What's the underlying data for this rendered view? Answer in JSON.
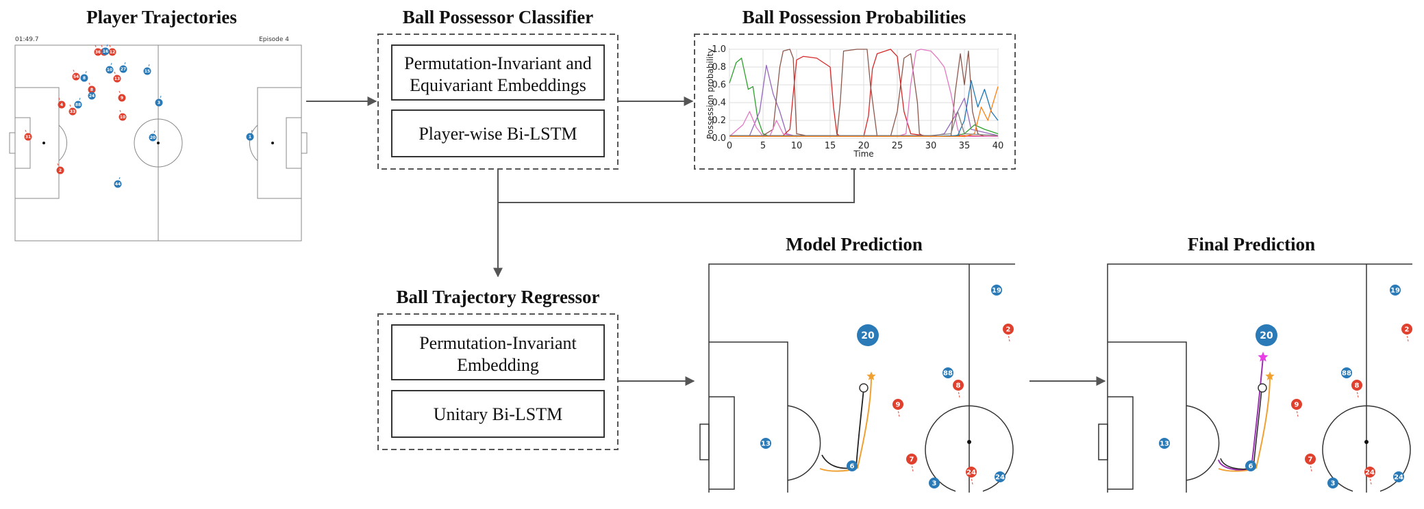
{
  "titles": {
    "trajectories": "Player Trajectories",
    "classifier": "Ball Possessor Classifier",
    "probabilities": "Ball Possession Probabilities",
    "regressor": "Ball Trajectory Regressor",
    "model_prediction": "Model Prediction",
    "final_prediction": "Final Prediction"
  },
  "classifier_boxes": [
    [
      "Permutation-Invariant and",
      "Equivariant Embeddings"
    ],
    [
      "Player-wise Bi-LSTM"
    ]
  ],
  "regressor_boxes": [
    [
      "Permutation-Invariant",
      "Embedding"
    ],
    [
      "Unitary Bi-LSTM"
    ]
  ],
  "trajectory_panel": {
    "clock": "01:49.7",
    "episode": "Episode 4",
    "red_players": [
      "36",
      "14",
      "12",
      "54",
      "9",
      "13",
      "8",
      "4",
      "33",
      "10",
      "31",
      "2"
    ],
    "blue_players": [
      "16",
      "10",
      "27",
      "15",
      "8",
      "88",
      "24",
      "3",
      "20",
      "1",
      "44"
    ]
  },
  "chart_data": {
    "type": "line",
    "title": "",
    "xlabel": "Time",
    "ylabel": "Possession probability",
    "xlim": [
      0,
      40
    ],
    "ylim": [
      0,
      1
    ],
    "xticks": [
      "0",
      "5",
      "10",
      "15",
      "20",
      "25",
      "30",
      "35",
      "40"
    ],
    "yticks": [
      "0.0",
      "0.2",
      "0.4",
      "0.6",
      "0.8",
      "1.0"
    ],
    "grid": true,
    "series": [
      {
        "color": "#2ca02c",
        "x": [
          0,
          1,
          1.8,
          2.8,
          3.5,
          4.2,
          5,
          6,
          7,
          8,
          9,
          10,
          15,
          20,
          25,
          30,
          33,
          35,
          36.5,
          38,
          40
        ],
        "y": [
          0.62,
          0.85,
          0.9,
          0.55,
          0.58,
          0.22,
          0.05,
          0.02,
          0.02,
          0.02,
          0.02,
          0.02,
          0.02,
          0.02,
          0.02,
          0.02,
          0.02,
          0.05,
          0.15,
          0.1,
          0.05
        ]
      },
      {
        "color": "#9467bd",
        "x": [
          0,
          3,
          4.5,
          5.5,
          6.5,
          7.5,
          8.5,
          10,
          15,
          20,
          25,
          30,
          32,
          34,
          35,
          36,
          40
        ],
        "y": [
          0.03,
          0.03,
          0.3,
          0.82,
          0.5,
          0.3,
          0.05,
          0.02,
          0.02,
          0.02,
          0.02,
          0.02,
          0.05,
          0.3,
          0.45,
          0.1,
          0.03
        ]
      },
      {
        "color": "#8c564b",
        "x": [
          0,
          5,
          6.5,
          7.5,
          8,
          9,
          9.5,
          10,
          12,
          16,
          16.5,
          17,
          19,
          20.5,
          21,
          22,
          24,
          25,
          26,
          27,
          28,
          28.3,
          29,
          33,
          33.6,
          34.4,
          35,
          35.6,
          36.2,
          37,
          38,
          40
        ],
        "y": [
          0.03,
          0.03,
          0.1,
          0.8,
          0.98,
          1.0,
          0.9,
          0.05,
          0.02,
          0.02,
          0.4,
          0.98,
          1.0,
          1.0,
          0.6,
          0.02,
          0.02,
          0.3,
          0.9,
          0.95,
          0.4,
          0.05,
          0.02,
          0.02,
          0.5,
          0.95,
          0.6,
          0.98,
          0.3,
          0.05,
          0.02,
          0.02
        ]
      },
      {
        "color": "#d62728",
        "x": [
          0,
          8,
          9,
          9.5,
          10,
          11,
          13,
          15,
          15.5,
          16,
          16.5,
          17,
          20,
          20.7,
          21.3,
          22,
          24,
          25,
          26,
          27,
          30,
          33,
          34,
          40
        ],
        "y": [
          0.03,
          0.03,
          0.1,
          0.5,
          0.88,
          0.92,
          0.9,
          0.8,
          0.35,
          0.05,
          0.02,
          0.02,
          0.02,
          0.25,
          0.78,
          0.95,
          1.0,
          0.92,
          0.3,
          0.05,
          0.02,
          0.02,
          0.03,
          0.02
        ]
      },
      {
        "color": "#e377c2",
        "x": [
          0,
          2,
          3,
          4,
          5,
          6,
          7,
          8,
          10,
          20,
          25,
          26.3,
          27,
          27.8,
          28.5,
          30,
          31,
          32,
          33,
          34,
          34.5,
          40
        ],
        "y": [
          0.02,
          0.15,
          0.3,
          0.12,
          0.02,
          0.02,
          0.2,
          0.05,
          0.02,
          0.02,
          0.02,
          0.05,
          0.6,
          0.98,
          1.0,
          0.98,
          0.9,
          0.8,
          0.5,
          0.1,
          0.02,
          0.02
        ]
      },
      {
        "color": "#1f77b4",
        "x": [
          0,
          10,
          20,
          30,
          34,
          35,
          36,
          37,
          38,
          39,
          40
        ],
        "y": [
          0.02,
          0.02,
          0.02,
          0.02,
          0.03,
          0.2,
          0.65,
          0.35,
          0.55,
          0.3,
          0.2
        ]
      },
      {
        "color": "#ff7f0e",
        "x": [
          0,
          10,
          20,
          30,
          35,
          36.5,
          37.5,
          38.5,
          40
        ],
        "y": [
          0.02,
          0.02,
          0.02,
          0.02,
          0.02,
          0.05,
          0.35,
          0.2,
          0.58
        ]
      },
      {
        "color": "#7f7f7f",
        "x": [
          0,
          10,
          20,
          30,
          33,
          34,
          35,
          40
        ],
        "y": [
          0.03,
          0.03,
          0.03,
          0.03,
          0.05,
          0.3,
          0.05,
          0.03
        ]
      }
    ]
  },
  "prediction_panels": {
    "red_players": [
      "2",
      "8",
      "9",
      "7",
      "24"
    ],
    "blue_players": [
      "19",
      "20",
      "88",
      "13",
      "6",
      "3",
      "24"
    ]
  },
  "colors": {
    "red_team": "#e0412f",
    "blue_team": "#2a7ab8",
    "truth_trajectory": "#f0a030",
    "predicted_trajectory": "#222222",
    "final_trajectory": "#9b2fb0",
    "final_star": "#e83ee6",
    "truth_star": "#f0a030"
  }
}
